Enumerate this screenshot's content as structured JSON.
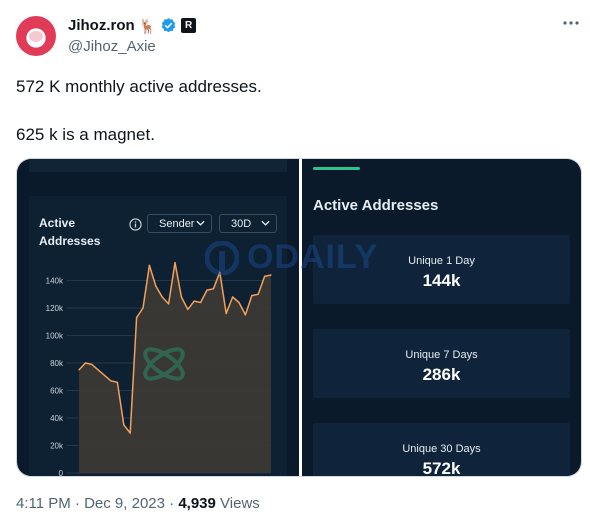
{
  "author": {
    "display_name": "Jihoz.ron",
    "handle": "@Jihoz_Axie",
    "emoji": "🦌",
    "affiliate_badge": "R",
    "avatar_icon": "axie-avatar-icon",
    "verified_icon": "verified-badge-icon"
  },
  "tweet": {
    "line1": "572 K monthly active addresses.",
    "line2": "625 k is a magnet."
  },
  "media": {
    "left": {
      "title": "Active Addresses",
      "dropdown1": "Sender",
      "dropdown2": "30D"
    },
    "right": {
      "title": "Active Addresses",
      "stats": [
        {
          "label": "Unique 1 Day",
          "value": "144k"
        },
        {
          "label": "Unique 7 Days",
          "value": "286k"
        },
        {
          "label": "Unique 30 Days",
          "value": "572k"
        }
      ]
    },
    "watermark": "ODAILY"
  },
  "chart_data": {
    "type": "area",
    "title": "Active Addresses",
    "y_ticks": [
      "0",
      "20k",
      "40k",
      "60k",
      "80k",
      "100k",
      "120k",
      "140k"
    ],
    "ylim": [
      0,
      160000
    ],
    "grid": true,
    "values": [
      75000,
      80000,
      79000,
      75000,
      71000,
      67000,
      66000,
      35000,
      29000,
      113000,
      120000,
      151000,
      136000,
      128000,
      123000,
      153000,
      128000,
      119000,
      125000,
      124000,
      133000,
      134000,
      146000,
      116000,
      128000,
      124000,
      115000,
      129000,
      130000,
      143000,
      144000
    ],
    "line_color": "#f5a05a"
  },
  "footer": {
    "time": "4:11 PM",
    "sep1": "·",
    "date": "Dec 9, 2023",
    "sep2": "·",
    "views": "4,939",
    "views_label": "Views"
  }
}
